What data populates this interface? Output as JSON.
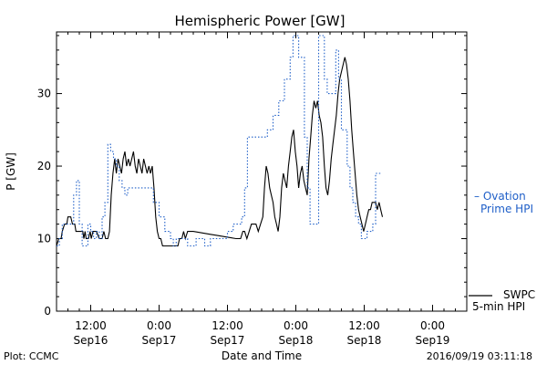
{
  "chart_data": {
    "type": "line",
    "title": "Hemispheric Power [GW]",
    "ylabel": "P [GW]",
    "xlabel": "Date and Time",
    "ylim": [
      0,
      38.5
    ],
    "xlim_hours": [
      0,
      72
    ],
    "y_ticks": [
      {
        "value": 0,
        "label": "0"
      },
      {
        "value": 10,
        "label": "10"
      },
      {
        "value": 20,
        "label": "20"
      },
      {
        "value": 30,
        "label": "30"
      }
    ],
    "x_ticks": [
      {
        "hour": 6,
        "time": "12:00",
        "date": "Sep16"
      },
      {
        "hour": 18,
        "time": "0:00",
        "date": "Sep17"
      },
      {
        "hour": 30,
        "time": "12:00",
        "date": "Sep17"
      },
      {
        "hour": 42,
        "time": "0:00",
        "date": "Sep18"
      },
      {
        "hour": 54,
        "time": "12:00",
        "date": "Sep18"
      },
      {
        "hour": 66,
        "time": "0:00",
        "date": "Sep19"
      }
    ],
    "series": [
      {
        "name_lines": [
          "SWPC",
          "5-min HPI"
        ],
        "color": "#000000",
        "dash": "solid",
        "points": [
          [
            0.0,
            9
          ],
          [
            0.4,
            10
          ],
          [
            0.8,
            10
          ],
          [
            1.0,
            11
          ],
          [
            1.4,
            12
          ],
          [
            1.8,
            12
          ],
          [
            2.0,
            13
          ],
          [
            2.5,
            13
          ],
          [
            2.8,
            12
          ],
          [
            3.2,
            12
          ],
          [
            3.4,
            11
          ],
          [
            4.0,
            11
          ],
          [
            4.6,
            11
          ],
          [
            4.8,
            10
          ],
          [
            5.0,
            11
          ],
          [
            5.2,
            10
          ],
          [
            5.6,
            10
          ],
          [
            5.9,
            11
          ],
          [
            6.1,
            10
          ],
          [
            6.4,
            11
          ],
          [
            7.0,
            11
          ],
          [
            7.5,
            10
          ],
          [
            8.0,
            10
          ],
          [
            8.3,
            11
          ],
          [
            8.6,
            10
          ],
          [
            9.0,
            10
          ],
          [
            9.3,
            11
          ],
          [
            9.6,
            16
          ],
          [
            9.9,
            19
          ],
          [
            10.2,
            21
          ],
          [
            10.5,
            19
          ],
          [
            10.8,
            21
          ],
          [
            11.1,
            20
          ],
          [
            11.4,
            19
          ],
          [
            11.7,
            21
          ],
          [
            12.0,
            22
          ],
          [
            12.3,
            20
          ],
          [
            12.6,
            21
          ],
          [
            12.9,
            20
          ],
          [
            13.2,
            21
          ],
          [
            13.5,
            22
          ],
          [
            13.8,
            20
          ],
          [
            14.1,
            19
          ],
          [
            14.4,
            21
          ],
          [
            14.7,
            20
          ],
          [
            15.0,
            19
          ],
          [
            15.3,
            21
          ],
          [
            15.6,
            20
          ],
          [
            15.9,
            19
          ],
          [
            16.2,
            20
          ],
          [
            16.5,
            19
          ],
          [
            16.8,
            20
          ],
          [
            17.1,
            17
          ],
          [
            17.4,
            13
          ],
          [
            17.7,
            11
          ],
          [
            18.0,
            10
          ],
          [
            18.3,
            10
          ],
          [
            18.6,
            9
          ],
          [
            19.5,
            9
          ],
          [
            20.5,
            9
          ],
          [
            21.3,
            9
          ],
          [
            21.6,
            10
          ],
          [
            22.0,
            10
          ],
          [
            22.3,
            11
          ],
          [
            22.6,
            10
          ],
          [
            23.0,
            11
          ],
          [
            24.0,
            11
          ],
          [
            25.5,
            10.8
          ],
          [
            27.0,
            10.6
          ],
          [
            28.5,
            10.4
          ],
          [
            30.0,
            10.2
          ],
          [
            31.5,
            10.0
          ],
          [
            32.3,
            10
          ],
          [
            32.7,
            11
          ],
          [
            33.0,
            11
          ],
          [
            33.4,
            10
          ],
          [
            33.8,
            11
          ],
          [
            34.2,
            12
          ],
          [
            34.6,
            12
          ],
          [
            35.0,
            12
          ],
          [
            35.4,
            11
          ],
          [
            35.8,
            12
          ],
          [
            36.2,
            13
          ],
          [
            36.5,
            17
          ],
          [
            36.8,
            20
          ],
          [
            37.1,
            19
          ],
          [
            37.4,
            17
          ],
          [
            37.7,
            16
          ],
          [
            38.0,
            15
          ],
          [
            38.3,
            13
          ],
          [
            38.6,
            12
          ],
          [
            38.9,
            11
          ],
          [
            39.2,
            13
          ],
          [
            39.5,
            17
          ],
          [
            39.8,
            19
          ],
          [
            40.1,
            18
          ],
          [
            40.4,
            17
          ],
          [
            40.7,
            20
          ],
          [
            41.0,
            22
          ],
          [
            41.3,
            24
          ],
          [
            41.6,
            25
          ],
          [
            41.9,
            22
          ],
          [
            42.2,
            20
          ],
          [
            42.5,
            17
          ],
          [
            42.8,
            19
          ],
          [
            43.1,
            20
          ],
          [
            43.4,
            18
          ],
          [
            43.7,
            17
          ],
          [
            44.0,
            16
          ],
          [
            44.3,
            21
          ],
          [
            44.6,
            24
          ],
          [
            44.9,
            27
          ],
          [
            45.2,
            29
          ],
          [
            45.5,
            28
          ],
          [
            45.8,
            29
          ],
          [
            46.1,
            27
          ],
          [
            46.4,
            26
          ],
          [
            46.7,
            24
          ],
          [
            47.0,
            20
          ],
          [
            47.3,
            17
          ],
          [
            47.6,
            16
          ],
          [
            47.9,
            18
          ],
          [
            48.2,
            21
          ],
          [
            48.5,
            23
          ],
          [
            48.8,
            25
          ],
          [
            49.1,
            27
          ],
          [
            49.4,
            30
          ],
          [
            49.7,
            32
          ],
          [
            50.0,
            33
          ],
          [
            50.3,
            34
          ],
          [
            50.6,
            35
          ],
          [
            50.9,
            34
          ],
          [
            51.2,
            32
          ],
          [
            51.5,
            29
          ],
          [
            51.8,
            25
          ],
          [
            52.1,
            22
          ],
          [
            52.4,
            19
          ],
          [
            52.7,
            16
          ],
          [
            53.0,
            14
          ],
          [
            53.3,
            13
          ],
          [
            53.6,
            12
          ],
          [
            53.9,
            11
          ],
          [
            54.2,
            12
          ],
          [
            54.5,
            13
          ],
          [
            54.8,
            14
          ],
          [
            55.1,
            14
          ],
          [
            55.4,
            15
          ],
          [
            55.7,
            15
          ],
          [
            56.0,
            15
          ],
          [
            56.3,
            14
          ],
          [
            56.6,
            15
          ],
          [
            56.9,
            14
          ],
          [
            57.2,
            13
          ]
        ]
      },
      {
        "name_lines": [
          "– Ovation",
          "Prime HPI"
        ],
        "color": "#1f5fc8",
        "dash": "dotted",
        "points": [
          [
            0.0,
            9
          ],
          [
            0.5,
            10
          ],
          [
            1.0,
            12
          ],
          [
            2.5,
            12
          ],
          [
            3.0,
            16
          ],
          [
            3.5,
            18
          ],
          [
            4.0,
            12
          ],
          [
            4.5,
            9
          ],
          [
            5.0,
            9
          ],
          [
            5.5,
            12
          ],
          [
            6.0,
            11
          ],
          [
            6.5,
            10
          ],
          [
            7.0,
            11
          ],
          [
            7.5,
            10
          ],
          [
            8.0,
            13
          ],
          [
            8.5,
            15
          ],
          [
            9.0,
            23
          ],
          [
            9.5,
            22
          ],
          [
            10.0,
            21
          ],
          [
            10.5,
            20
          ],
          [
            11.0,
            18
          ],
          [
            11.5,
            17
          ],
          [
            12.0,
            16
          ],
          [
            12.5,
            17
          ],
          [
            13.0,
            17
          ],
          [
            14.0,
            17
          ],
          [
            16.0,
            17
          ],
          [
            17.0,
            15
          ],
          [
            18.0,
            13
          ],
          [
            19.0,
            11
          ],
          [
            20.0,
            10
          ],
          [
            20.5,
            9
          ],
          [
            21.0,
            10
          ],
          [
            22.0,
            10
          ],
          [
            23.0,
            9
          ],
          [
            24.0,
            9
          ],
          [
            24.5,
            10
          ],
          [
            25.0,
            10
          ],
          [
            26.0,
            9
          ],
          [
            27.0,
            10
          ],
          [
            28.0,
            10
          ],
          [
            29.0,
            10
          ],
          [
            30.0,
            11
          ],
          [
            31.0,
            12
          ],
          [
            32.0,
            12
          ],
          [
            32.5,
            13
          ],
          [
            33.0,
            17
          ],
          [
            33.5,
            24
          ],
          [
            34.0,
            24
          ],
          [
            35.0,
            24
          ],
          [
            36.0,
            24
          ],
          [
            37.0,
            25
          ],
          [
            38.0,
            27
          ],
          [
            39.0,
            29
          ],
          [
            40.0,
            32
          ],
          [
            41.0,
            35
          ],
          [
            41.5,
            38
          ],
          [
            42.0,
            38
          ],
          [
            42.5,
            35
          ],
          [
            43.0,
            35
          ],
          [
            43.5,
            24
          ],
          [
            44.0,
            17
          ],
          [
            44.5,
            12
          ],
          [
            45.0,
            12
          ],
          [
            45.5,
            12
          ],
          [
            46.0,
            38
          ],
          [
            46.5,
            38
          ],
          [
            47.0,
            32
          ],
          [
            47.5,
            30
          ],
          [
            48.0,
            30
          ],
          [
            48.5,
            30
          ],
          [
            49.0,
            36
          ],
          [
            49.5,
            32
          ],
          [
            50.0,
            25
          ],
          [
            50.5,
            25
          ],
          [
            51.0,
            20
          ],
          [
            51.5,
            17
          ],
          [
            52.0,
            15
          ],
          [
            52.5,
            13
          ],
          [
            53.0,
            12
          ],
          [
            53.5,
            10
          ],
          [
            54.0,
            10
          ],
          [
            54.5,
            11
          ],
          [
            55.0,
            11
          ],
          [
            55.5,
            12
          ],
          [
            56.0,
            19
          ],
          [
            57.0,
            19
          ]
        ]
      }
    ],
    "footer": {
      "left": "Plot: CCMC",
      "right": "2016/09/19 03:11:18"
    }
  }
}
